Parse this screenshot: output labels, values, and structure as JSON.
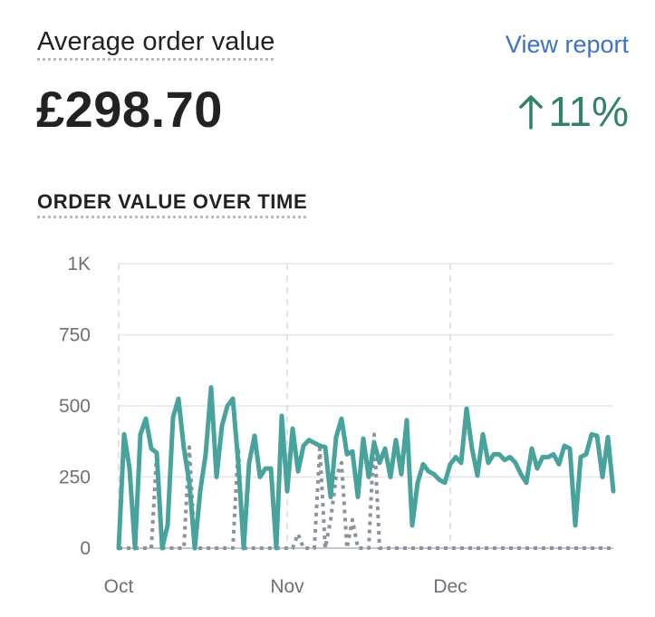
{
  "card": {
    "title": "Average order value",
    "view_report_label": "View report",
    "value": "£298.70",
    "change": "11%",
    "change_direction": "up",
    "section_title": "ORDER VALUE OVER TIME"
  },
  "colors": {
    "primary_series": "#47a39b",
    "comparison_series": "#8c929e",
    "link": "#3b72c8",
    "positive": "#318266"
  },
  "chart_data": {
    "type": "line",
    "title": "",
    "xlabel": "",
    "ylabel": "",
    "ylim": [
      0,
      1000
    ],
    "yticks": [
      0,
      250,
      500,
      750,
      1000
    ],
    "ytick_labels": [
      "0",
      "250",
      "500",
      "750",
      "1K"
    ],
    "x_range_days": [
      0,
      91
    ],
    "xticks": [
      {
        "day": 0,
        "label": "Oct"
      },
      {
        "day": 31,
        "label": "Nov"
      },
      {
        "day": 61,
        "label": "Dec"
      }
    ],
    "grid": true,
    "legend": "none",
    "series": [
      {
        "style": "solid",
        "values": [
          0,
          400,
          280,
          0,
          400,
          455,
          350,
          335,
          0,
          80,
          460,
          525,
          350,
          230,
          0,
          200,
          330,
          565,
          250,
          430,
          500,
          525,
          300,
          0,
          300,
          395,
          250,
          280,
          280,
          0,
          465,
          200,
          420,
          270,
          360,
          380,
          370,
          360,
          355,
          180,
          390,
          455,
          330,
          340,
          180,
          385,
          250,
          370,
          300,
          350,
          250,
          380,
          260,
          450,
          80,
          230,
          295,
          270,
          260,
          240,
          230,
          295,
          320,
          300,
          490,
          350,
          255,
          400,
          300,
          330,
          330,
          310,
          320,
          300,
          260,
          230,
          350,
          280,
          320,
          320,
          330,
          295,
          360,
          350,
          80,
          320,
          330,
          400,
          395,
          250,
          390,
          200
        ]
      },
      {
        "style": "dotted",
        "values": [
          0,
          0,
          0,
          0,
          0,
          0,
          0,
          330,
          0,
          0,
          0,
          0,
          0,
          355,
          0,
          0,
          0,
          0,
          0,
          0,
          0,
          0,
          355,
          0,
          0,
          0,
          0,
          0,
          0,
          0,
          0,
          0,
          0,
          50,
          0,
          0,
          0,
          350,
          0,
          100,
          250,
          300,
          0,
          100,
          0,
          0,
          0,
          400,
          0,
          0,
          0,
          0,
          0,
          0,
          0,
          0,
          0,
          0,
          0,
          0,
          0,
          0,
          0,
          0,
          0,
          0,
          0,
          0,
          0,
          0,
          0,
          0,
          0,
          0,
          0,
          0,
          0,
          0,
          0,
          0,
          0,
          0,
          0,
          0,
          0,
          0,
          0,
          0,
          0,
          0,
          0,
          0
        ]
      }
    ]
  }
}
